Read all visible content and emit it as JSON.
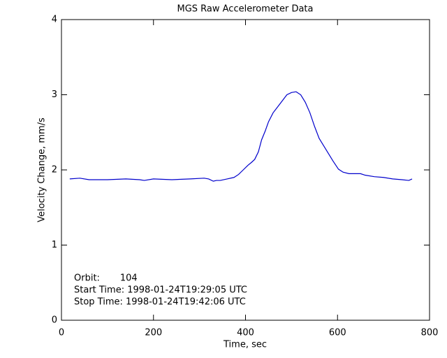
{
  "chart_data": {
    "type": "line",
    "title": "MGS Raw Accelerometer Data",
    "xlabel": "Time, sec",
    "ylabel": "Velocity Change, mm/s",
    "annotations": [
      "Orbit:       104",
      "Start Time: 1998-01-24T19:29:05 UTC",
      "Stop Time: 1998-01-24T19:42:06 UTC"
    ],
    "x": [
      18,
      40,
      60,
      100,
      140,
      170,
      180,
      200,
      240,
      280,
      310,
      320,
      330,
      337,
      345,
      360,
      375,
      385,
      395,
      405,
      413,
      420,
      428,
      435,
      443,
      450,
      460,
      470,
      480,
      490,
      500,
      510,
      520,
      530,
      540,
      550,
      560,
      570,
      580,
      590,
      602,
      612,
      625,
      640,
      650,
      660,
      680,
      700,
      720,
      740,
      755,
      762
    ],
    "series": [
      {
        "name": "velocity",
        "color": "#0000cc",
        "values": [
          1.88,
          1.89,
          1.87,
          1.87,
          1.88,
          1.87,
          1.86,
          1.88,
          1.87,
          1.88,
          1.89,
          1.88,
          1.85,
          1.86,
          1.86,
          1.88,
          1.9,
          1.94,
          2.0,
          2.06,
          2.1,
          2.14,
          2.24,
          2.4,
          2.52,
          2.64,
          2.76,
          2.84,
          2.92,
          3.0,
          3.03,
          3.04,
          3.0,
          2.9,
          2.76,
          2.58,
          2.42,
          2.32,
          2.22,
          2.12,
          2.01,
          1.97,
          1.95,
          1.95,
          1.95,
          1.93,
          1.91,
          1.9,
          1.88,
          1.87,
          1.86,
          1.88
        ]
      }
    ],
    "xlim": [
      0,
      800
    ],
    "xticks": [
      0,
      200,
      400,
      600,
      800
    ],
    "ylim": [
      0,
      4
    ],
    "yticks": [
      0,
      1,
      2,
      3,
      4
    ]
  }
}
